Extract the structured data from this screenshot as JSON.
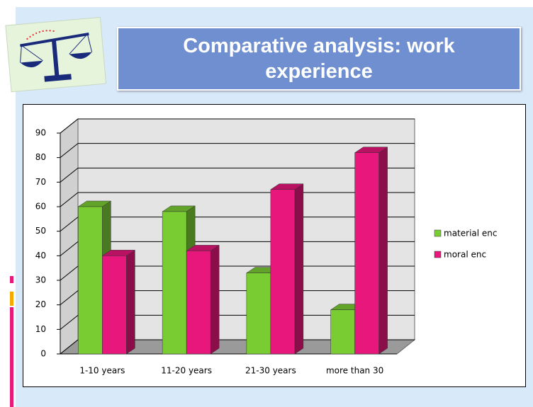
{
  "title": "Comparative analysis: work experience",
  "chart_data": {
    "type": "bar3d",
    "categories": [
      "1-10 years",
      "11-20 years",
      "21-30 years",
      "more than 30"
    ],
    "series": [
      {
        "name": "material enc",
        "color": "#7acc33",
        "values": [
          60,
          58,
          33,
          18
        ]
      },
      {
        "name": "moral enc",
        "color": "#e8177c",
        "values": [
          40,
          42,
          67,
          82
        ]
      }
    ],
    "ylim": [
      0,
      90
    ],
    "yticks": [
      0,
      10,
      20,
      30,
      40,
      50,
      60,
      70,
      80,
      90
    ],
    "grid": true,
    "legend": "right"
  }
}
